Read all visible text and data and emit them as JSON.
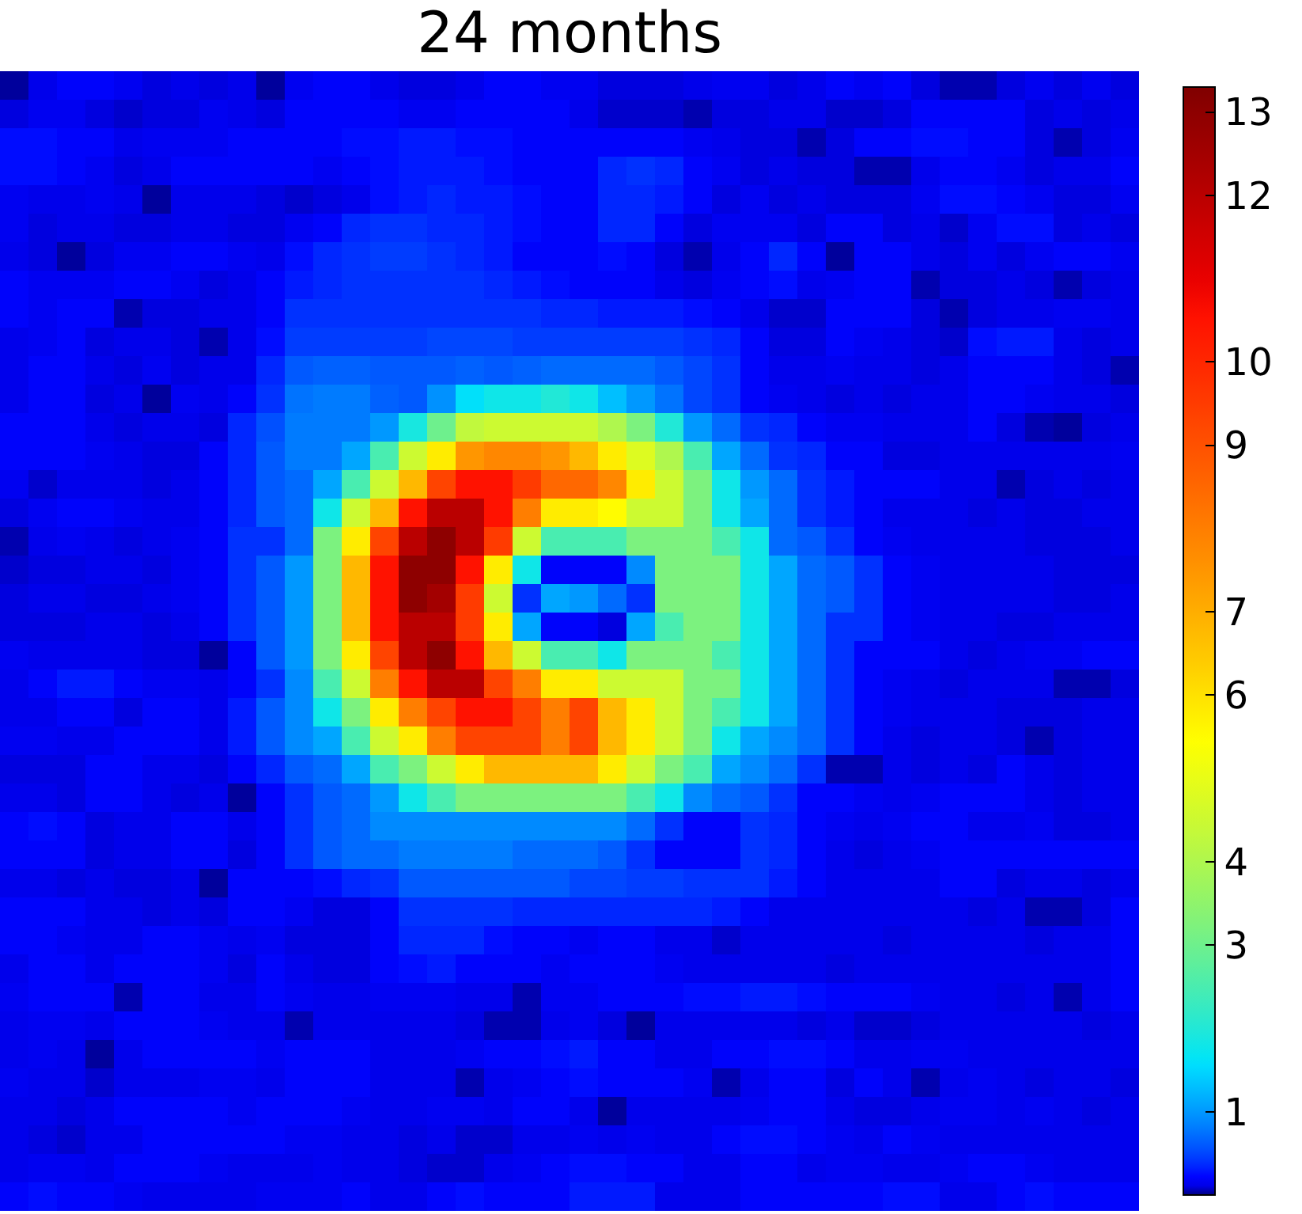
{
  "chart_data": {
    "type": "heatmap",
    "title": "24 months",
    "categories": [
      null,
      null,
      null,
      null,
      null,
      null,
      null,
      null,
      null,
      null,
      null,
      null,
      null,
      null,
      null,
      null,
      null,
      null,
      null,
      null,
      null,
      null,
      null,
      null,
      null,
      null,
      null,
      null,
      null,
      null,
      null,
      null,
      null,
      null,
      null,
      null,
      null,
      null,
      null,
      null
    ],
    "y_categories": [
      null,
      null,
      null,
      null,
      null,
      null,
      null,
      null,
      null,
      null,
      null,
      null,
      null,
      null,
      null,
      null,
      null,
      null,
      null,
      null,
      null,
      null,
      null,
      null,
      null,
      null,
      null,
      null,
      null,
      null,
      null,
      null,
      null,
      null,
      null,
      null,
      null,
      null,
      null,
      null
    ],
    "clim": [
      0,
      13.3
    ],
    "cticks": [
      1,
      3,
      4,
      6,
      7,
      9,
      10,
      12,
      13
    ],
    "cells": [
      [
        0.03,
        0.12,
        0.2,
        0.2,
        0.15,
        0.1,
        0.12,
        0.1,
        0.12,
        0.03,
        0.15,
        0.2,
        0.2,
        0.12,
        0.1,
        0.1,
        0.12,
        0.2,
        0.2,
        0.15,
        0.15,
        0.1,
        0.1,
        0.1,
        0.12,
        0.15,
        0.15,
        0.1,
        0.12,
        0.2,
        0.15,
        0.2,
        0.1,
        0.05,
        0.05,
        0.1,
        0.15,
        0.1,
        0.15,
        0.1
      ],
      [
        0.1,
        0.15,
        0.15,
        0.1,
        0.08,
        0.1,
        0.1,
        0.15,
        0.12,
        0.1,
        0.2,
        0.2,
        0.2,
        0.2,
        0.15,
        0.15,
        0.2,
        0.2,
        0.2,
        0.2,
        0.12,
        0.08,
        0.08,
        0.08,
        0.05,
        0.1,
        0.1,
        0.12,
        0.12,
        0.08,
        0.08,
        0.1,
        0.2,
        0.2,
        0.2,
        0.2,
        0.1,
        0.12,
        0.1,
        0.12
      ],
      [
        0.25,
        0.25,
        0.2,
        0.2,
        0.12,
        0.15,
        0.15,
        0.15,
        0.2,
        0.2,
        0.2,
        0.2,
        0.25,
        0.25,
        0.3,
        0.3,
        0.25,
        0.25,
        0.2,
        0.2,
        0.2,
        0.2,
        0.2,
        0.2,
        0.15,
        0.12,
        0.1,
        0.1,
        0.05,
        0.1,
        0.2,
        0.2,
        0.25,
        0.25,
        0.2,
        0.2,
        0.1,
        0.05,
        0.1,
        0.15
      ],
      [
        0.25,
        0.25,
        0.2,
        0.15,
        0.1,
        0.12,
        0.2,
        0.2,
        0.2,
        0.2,
        0.2,
        0.15,
        0.2,
        0.25,
        0.3,
        0.3,
        0.3,
        0.25,
        0.2,
        0.2,
        0.2,
        0.35,
        0.4,
        0.35,
        0.2,
        0.15,
        0.1,
        0.12,
        0.1,
        0.1,
        0.05,
        0.05,
        0.12,
        0.2,
        0.2,
        0.15,
        0.1,
        0.12,
        0.12,
        0.2
      ],
      [
        0.15,
        0.12,
        0.12,
        0.15,
        0.12,
        0.03,
        0.12,
        0.12,
        0.12,
        0.1,
        0.08,
        0.1,
        0.12,
        0.25,
        0.3,
        0.35,
        0.3,
        0.3,
        0.25,
        0.2,
        0.2,
        0.35,
        0.35,
        0.3,
        0.2,
        0.1,
        0.15,
        0.1,
        0.12,
        0.1,
        0.1,
        0.1,
        0.15,
        0.25,
        0.25,
        0.2,
        0.15,
        0.1,
        0.1,
        0.15
      ],
      [
        0.15,
        0.1,
        0.12,
        0.12,
        0.1,
        0.1,
        0.12,
        0.12,
        0.1,
        0.1,
        0.15,
        0.2,
        0.35,
        0.4,
        0.4,
        0.35,
        0.35,
        0.3,
        0.25,
        0.2,
        0.2,
        0.35,
        0.35,
        0.2,
        0.1,
        0.15,
        0.15,
        0.15,
        0.1,
        0.2,
        0.2,
        0.1,
        0.12,
        0.08,
        0.15,
        0.25,
        0.25,
        0.1,
        0.12,
        0.1
      ],
      [
        0.12,
        0.1,
        0.03,
        0.1,
        0.15,
        0.15,
        0.2,
        0.2,
        0.15,
        0.12,
        0.25,
        0.35,
        0.4,
        0.45,
        0.45,
        0.4,
        0.35,
        0.3,
        0.2,
        0.2,
        0.2,
        0.25,
        0.2,
        0.1,
        0.05,
        0.12,
        0.2,
        0.35,
        0.2,
        0.03,
        0.2,
        0.2,
        0.12,
        0.1,
        0.15,
        0.1,
        0.15,
        0.2,
        0.2,
        0.15
      ],
      [
        0.2,
        0.15,
        0.15,
        0.15,
        0.2,
        0.2,
        0.15,
        0.1,
        0.12,
        0.2,
        0.3,
        0.35,
        0.4,
        0.4,
        0.4,
        0.4,
        0.4,
        0.35,
        0.3,
        0.25,
        0.2,
        0.2,
        0.2,
        0.12,
        0.1,
        0.15,
        0.2,
        0.25,
        0.12,
        0.15,
        0.2,
        0.2,
        0.05,
        0.1,
        0.1,
        0.12,
        0.1,
        0.05,
        0.1,
        0.12
      ],
      [
        0.2,
        0.15,
        0.2,
        0.2,
        0.05,
        0.1,
        0.1,
        0.12,
        0.12,
        0.2,
        0.4,
        0.4,
        0.4,
        0.4,
        0.4,
        0.4,
        0.4,
        0.4,
        0.4,
        0.35,
        0.35,
        0.3,
        0.3,
        0.3,
        0.25,
        0.2,
        0.12,
        0.08,
        0.08,
        0.2,
        0.2,
        0.2,
        0.1,
        0.05,
        0.1,
        0.12,
        0.12,
        0.15,
        0.15,
        0.12
      ],
      [
        0.12,
        0.15,
        0.2,
        0.1,
        0.12,
        0.12,
        0.1,
        0.05,
        0.12,
        0.25,
        0.45,
        0.45,
        0.45,
        0.45,
        0.45,
        0.5,
        0.5,
        0.5,
        0.45,
        0.45,
        0.45,
        0.45,
        0.45,
        0.45,
        0.4,
        0.35,
        0.2,
        0.1,
        0.1,
        0.2,
        0.15,
        0.12,
        0.1,
        0.08,
        0.25,
        0.3,
        0.3,
        0.12,
        0.1,
        0.12
      ],
      [
        0.12,
        0.2,
        0.2,
        0.12,
        0.1,
        0.15,
        0.1,
        0.12,
        0.12,
        0.35,
        0.6,
        0.65,
        0.65,
        0.6,
        0.6,
        0.6,
        0.65,
        0.6,
        0.65,
        0.7,
        0.7,
        0.7,
        0.7,
        0.6,
        0.5,
        0.4,
        0.2,
        0.12,
        0.12,
        0.15,
        0.12,
        0.12,
        0.1,
        0.12,
        0.2,
        0.2,
        0.2,
        0.12,
        0.1,
        0.05
      ],
      [
        0.12,
        0.2,
        0.2,
        0.1,
        0.12,
        0.03,
        0.15,
        0.12,
        0.2,
        0.4,
        0.75,
        0.8,
        0.8,
        0.65,
        0.6,
        0.95,
        1.6,
        1.8,
        1.8,
        2.0,
        1.8,
        1.3,
        1.0,
        0.75,
        0.5,
        0.4,
        0.2,
        0.15,
        0.12,
        0.1,
        0.12,
        0.1,
        0.12,
        0.12,
        0.2,
        0.2,
        0.15,
        0.12,
        0.12,
        0.1
      ],
      [
        0.2,
        0.2,
        0.2,
        0.12,
        0.1,
        0.12,
        0.12,
        0.1,
        0.35,
        0.55,
        0.8,
        0.8,
        0.8,
        1.0,
        1.9,
        3.0,
        4.3,
        4.5,
        4.5,
        4.5,
        4.5,
        4.0,
        3.2,
        2.0,
        1.0,
        0.7,
        0.4,
        0.35,
        0.2,
        0.15,
        0.15,
        0.12,
        0.12,
        0.12,
        0.2,
        0.1,
        0.05,
        0.03,
        0.1,
        0.12
      ],
      [
        0.2,
        0.2,
        0.2,
        0.15,
        0.12,
        0.1,
        0.1,
        0.2,
        0.35,
        0.6,
        0.8,
        0.8,
        1.1,
        2.5,
        4.5,
        5.8,
        7.5,
        7.8,
        7.8,
        7.5,
        6.8,
        5.8,
        4.8,
        4.0,
        2.5,
        1.1,
        0.7,
        0.4,
        0.35,
        0.2,
        0.2,
        0.1,
        0.1,
        0.12,
        0.12,
        0.12,
        0.12,
        0.12,
        0.12,
        0.15
      ],
      [
        0.15,
        0.08,
        0.12,
        0.12,
        0.12,
        0.1,
        0.12,
        0.2,
        0.35,
        0.6,
        0.7,
        1.1,
        2.5,
        4.5,
        6.8,
        9.3,
        10.5,
        10.5,
        9.5,
        8.5,
        8.5,
        7.8,
        5.8,
        4.5,
        3.2,
        1.8,
        1.0,
        0.7,
        0.4,
        0.3,
        0.2,
        0.2,
        0.2,
        0.12,
        0.12,
        0.05,
        0.1,
        0.12,
        0.1,
        0.12
      ],
      [
        0.1,
        0.15,
        0.2,
        0.2,
        0.15,
        0.12,
        0.12,
        0.2,
        0.35,
        0.6,
        0.7,
        1.8,
        4.5,
        6.8,
        10.5,
        12,
        12,
        10.5,
        8,
        5.8,
        5.8,
        5.5,
        4.5,
        4.5,
        3.2,
        1.8,
        1.1,
        0.7,
        0.4,
        0.3,
        0.2,
        0.12,
        0.12,
        0.12,
        0.1,
        0.12,
        0.1,
        0.1,
        0.12,
        0.12
      ],
      [
        0.05,
        0.12,
        0.15,
        0.12,
        0.1,
        0.12,
        0.15,
        0.2,
        0.4,
        0.4,
        0.7,
        3.2,
        5.8,
        9.3,
        12,
        13,
        12,
        9.5,
        4.5,
        2.5,
        2.5,
        2.5,
        3.2,
        3.2,
        3.2,
        2.5,
        1.8,
        0.7,
        0.6,
        0.4,
        0.2,
        0.15,
        0.12,
        0.12,
        0.12,
        0.12,
        0.1,
        0.1,
        0.1,
        0.12
      ],
      [
        0.08,
        0.1,
        0.1,
        0.12,
        0.12,
        0.1,
        0.15,
        0.2,
        0.4,
        0.6,
        1.0,
        3.2,
        6.8,
        10.5,
        13,
        13,
        10.5,
        5.8,
        1.8,
        0.2,
        0.2,
        0.2,
        0.9,
        3.2,
        3.2,
        3.2,
        1.8,
        1.1,
        0.7,
        0.6,
        0.4,
        0.2,
        0.15,
        0.12,
        0.12,
        0.12,
        0.12,
        0.1,
        0.1,
        0.1
      ],
      [
        0.1,
        0.12,
        0.12,
        0.1,
        0.1,
        0.12,
        0.15,
        0.2,
        0.4,
        0.6,
        1.0,
        3.2,
        6.8,
        10.5,
        13,
        12.5,
        9.5,
        4.5,
        0.4,
        1.1,
        1.0,
        0.7,
        0.4,
        3.2,
        3.2,
        3.2,
        1.8,
        1.1,
        0.7,
        0.6,
        0.4,
        0.2,
        0.15,
        0.12,
        0.12,
        0.12,
        0.12,
        0.1,
        0.1,
        0.12
      ],
      [
        0.1,
        0.1,
        0.1,
        0.12,
        0.12,
        0.1,
        0.12,
        0.2,
        0.4,
        0.6,
        1.0,
        3.2,
        6.8,
        10.5,
        12,
        12,
        9.5,
        5.8,
        1.1,
        0.2,
        0.2,
        0.1,
        1.1,
        2.5,
        3.2,
        3.2,
        1.8,
        1.1,
        0.7,
        0.4,
        0.4,
        0.2,
        0.15,
        0.12,
        0.12,
        0.1,
        0.1,
        0.12,
        0.12,
        0.12
      ],
      [
        0.15,
        0.12,
        0.12,
        0.12,
        0.12,
        0.1,
        0.1,
        0.03,
        0.2,
        0.6,
        1.0,
        3.2,
        5.8,
        9.3,
        12,
        13,
        10.5,
        6.8,
        4.5,
        2.5,
        2.5,
        1.8,
        3.2,
        3.2,
        3.2,
        2.5,
        1.8,
        1.1,
        0.7,
        0.4,
        0.2,
        0.2,
        0.2,
        0.12,
        0.1,
        0.12,
        0.15,
        0.15,
        0.2,
        0.2
      ],
      [
        0.12,
        0.2,
        0.3,
        0.3,
        0.2,
        0.15,
        0.15,
        0.12,
        0.2,
        0.4,
        0.9,
        2.5,
        4.5,
        8,
        10.5,
        12,
        12,
        9.3,
        8,
        5.8,
        5.8,
        4.5,
        4.5,
        4.5,
        3.2,
        3.2,
        1.8,
        1.1,
        0.7,
        0.4,
        0.2,
        0.15,
        0.12,
        0.1,
        0.12,
        0.12,
        0.12,
        0.05,
        0.05,
        0.1
      ],
      [
        0.12,
        0.12,
        0.2,
        0.2,
        0.1,
        0.2,
        0.2,
        0.12,
        0.3,
        0.6,
        0.9,
        1.8,
        3.2,
        5.8,
        8,
        9.3,
        10.5,
        10.5,
        9.3,
        8,
        9.3,
        6.8,
        5.8,
        4.5,
        3.2,
        2.5,
        1.8,
        1.1,
        0.7,
        0.4,
        0.2,
        0.15,
        0.12,
        0.12,
        0.12,
        0.1,
        0.1,
        0.1,
        0.12,
        0.12
      ],
      [
        0.15,
        0.15,
        0.12,
        0.12,
        0.2,
        0.2,
        0.2,
        0.12,
        0.3,
        0.6,
        0.9,
        1.1,
        2.5,
        4.5,
        5.8,
        8,
        9.3,
        9.3,
        9.3,
        8,
        9.3,
        6.8,
        5.8,
        4.5,
        3.2,
        1.8,
        1.1,
        0.9,
        0.7,
        0.4,
        0.2,
        0.12,
        0.1,
        0.12,
        0.12,
        0.1,
        0.05,
        0.1,
        0.12,
        0.12
      ],
      [
        0.1,
        0.1,
        0.1,
        0.2,
        0.2,
        0.12,
        0.12,
        0.1,
        0.2,
        0.35,
        0.6,
        0.7,
        1.1,
        2.5,
        3.2,
        4.5,
        5.8,
        6.8,
        6.8,
        6.8,
        6.8,
        5.8,
        4.5,
        3.2,
        2.5,
        1.1,
        0.9,
        0.7,
        0.4,
        0.05,
        0.05,
        0.12,
        0.1,
        0.12,
        0.1,
        0.2,
        0.12,
        0.1,
        0.12,
        0.12
      ],
      [
        0.12,
        0.12,
        0.1,
        0.2,
        0.2,
        0.12,
        0.1,
        0.12,
        0.03,
        0.2,
        0.4,
        0.6,
        0.7,
        1.0,
        1.8,
        2.5,
        3.2,
        3.2,
        3.2,
        3.2,
        3.2,
        3.2,
        2.5,
        1.8,
        0.9,
        0.7,
        0.6,
        0.4,
        0.2,
        0.2,
        0.15,
        0.12,
        0.15,
        0.2,
        0.2,
        0.2,
        0.12,
        0.1,
        0.12,
        0.12
      ],
      [
        0.2,
        0.25,
        0.2,
        0.1,
        0.12,
        0.12,
        0.2,
        0.2,
        0.12,
        0.2,
        0.4,
        0.6,
        0.7,
        0.9,
        0.9,
        0.9,
        0.9,
        0.9,
        0.9,
        0.9,
        0.9,
        0.9,
        0.7,
        0.4,
        0.2,
        0.2,
        0.4,
        0.35,
        0.2,
        0.15,
        0.12,
        0.15,
        0.2,
        0.2,
        0.12,
        0.12,
        0.15,
        0.1,
        0.1,
        0.12
      ],
      [
        0.2,
        0.2,
        0.2,
        0.1,
        0.12,
        0.12,
        0.2,
        0.2,
        0.1,
        0.2,
        0.4,
        0.6,
        0.7,
        0.7,
        0.8,
        0.8,
        0.8,
        0.8,
        0.7,
        0.7,
        0.7,
        0.6,
        0.4,
        0.2,
        0.2,
        0.2,
        0.4,
        0.35,
        0.2,
        0.12,
        0.1,
        0.12,
        0.15,
        0.2,
        0.2,
        0.2,
        0.2,
        0.2,
        0.2,
        0.2
      ],
      [
        0.12,
        0.12,
        0.1,
        0.12,
        0.1,
        0.1,
        0.12,
        0.03,
        0.2,
        0.2,
        0.2,
        0.25,
        0.35,
        0.4,
        0.6,
        0.6,
        0.6,
        0.6,
        0.6,
        0.6,
        0.5,
        0.5,
        0.45,
        0.45,
        0.4,
        0.4,
        0.4,
        0.3,
        0.2,
        0.12,
        0.12,
        0.12,
        0.12,
        0.2,
        0.2,
        0.1,
        0.12,
        0.12,
        0.1,
        0.12
      ],
      [
        0.2,
        0.2,
        0.2,
        0.12,
        0.12,
        0.1,
        0.12,
        0.1,
        0.2,
        0.2,
        0.15,
        0.1,
        0.1,
        0.2,
        0.4,
        0.4,
        0.4,
        0.4,
        0.35,
        0.35,
        0.35,
        0.35,
        0.35,
        0.35,
        0.35,
        0.3,
        0.2,
        0.12,
        0.12,
        0.12,
        0.12,
        0.12,
        0.12,
        0.12,
        0.1,
        0.12,
        0.05,
        0.05,
        0.1,
        0.2
      ],
      [
        0.2,
        0.2,
        0.15,
        0.12,
        0.12,
        0.2,
        0.2,
        0.15,
        0.12,
        0.15,
        0.1,
        0.1,
        0.1,
        0.2,
        0.35,
        0.35,
        0.35,
        0.25,
        0.2,
        0.2,
        0.15,
        0.2,
        0.2,
        0.12,
        0.12,
        0.08,
        0.12,
        0.12,
        0.12,
        0.12,
        0.12,
        0.1,
        0.12,
        0.12,
        0.12,
        0.12,
        0.1,
        0.12,
        0.12,
        0.2
      ],
      [
        0.12,
        0.2,
        0.2,
        0.12,
        0.2,
        0.2,
        0.2,
        0.15,
        0.1,
        0.2,
        0.12,
        0.1,
        0.1,
        0.2,
        0.25,
        0.3,
        0.2,
        0.2,
        0.2,
        0.15,
        0.2,
        0.2,
        0.2,
        0.15,
        0.12,
        0.12,
        0.12,
        0.12,
        0.12,
        0.1,
        0.12,
        0.12,
        0.12,
        0.12,
        0.12,
        0.12,
        0.12,
        0.12,
        0.12,
        0.2
      ],
      [
        0.15,
        0.2,
        0.2,
        0.2,
        0.05,
        0.2,
        0.2,
        0.12,
        0.12,
        0.2,
        0.15,
        0.12,
        0.12,
        0.15,
        0.15,
        0.15,
        0.12,
        0.12,
        0.05,
        0.15,
        0.15,
        0.2,
        0.2,
        0.2,
        0.25,
        0.25,
        0.3,
        0.3,
        0.25,
        0.2,
        0.2,
        0.2,
        0.15,
        0.12,
        0.12,
        0.1,
        0.12,
        0.05,
        0.12,
        0.2
      ],
      [
        0.12,
        0.15,
        0.15,
        0.12,
        0.2,
        0.2,
        0.2,
        0.15,
        0.12,
        0.12,
        0.05,
        0.12,
        0.12,
        0.12,
        0.12,
        0.12,
        0.1,
        0.05,
        0.05,
        0.12,
        0.15,
        0.1,
        0.03,
        0.12,
        0.12,
        0.12,
        0.12,
        0.12,
        0.1,
        0.12,
        0.08,
        0.08,
        0.1,
        0.12,
        0.12,
        0.12,
        0.12,
        0.12,
        0.1,
        0.12
      ],
      [
        0.12,
        0.15,
        0.12,
        0.03,
        0.12,
        0.2,
        0.2,
        0.2,
        0.2,
        0.15,
        0.2,
        0.2,
        0.2,
        0.12,
        0.12,
        0.12,
        0.15,
        0.2,
        0.2,
        0.25,
        0.3,
        0.2,
        0.2,
        0.12,
        0.12,
        0.2,
        0.2,
        0.25,
        0.25,
        0.2,
        0.12,
        0.12,
        0.15,
        0.15,
        0.12,
        0.12,
        0.12,
        0.12,
        0.12,
        0.12
      ],
      [
        0.15,
        0.12,
        0.12,
        0.08,
        0.12,
        0.12,
        0.12,
        0.15,
        0.15,
        0.12,
        0.2,
        0.2,
        0.2,
        0.12,
        0.12,
        0.12,
        0.05,
        0.12,
        0.15,
        0.2,
        0.25,
        0.2,
        0.2,
        0.2,
        0.15,
        0.05,
        0.12,
        0.2,
        0.2,
        0.1,
        0.2,
        0.12,
        0.05,
        0.12,
        0.15,
        0.12,
        0.1,
        0.12,
        0.12,
        0.1
      ],
      [
        0.12,
        0.12,
        0.1,
        0.12,
        0.2,
        0.2,
        0.2,
        0.2,
        0.15,
        0.2,
        0.2,
        0.2,
        0.15,
        0.12,
        0.12,
        0.15,
        0.15,
        0.12,
        0.2,
        0.2,
        0.12,
        0.03,
        0.12,
        0.12,
        0.12,
        0.12,
        0.15,
        0.2,
        0.2,
        0.12,
        0.1,
        0.1,
        0.12,
        0.15,
        0.15,
        0.12,
        0.15,
        0.12,
        0.1,
        0.12
      ],
      [
        0.12,
        0.1,
        0.08,
        0.12,
        0.12,
        0.2,
        0.2,
        0.2,
        0.2,
        0.2,
        0.15,
        0.15,
        0.12,
        0.12,
        0.1,
        0.12,
        0.08,
        0.08,
        0.12,
        0.12,
        0.15,
        0.12,
        0.15,
        0.12,
        0.12,
        0.2,
        0.25,
        0.25,
        0.2,
        0.15,
        0.12,
        0.2,
        0.15,
        0.12,
        0.12,
        0.12,
        0.12,
        0.12,
        0.12,
        0.12
      ],
      [
        0.12,
        0.15,
        0.15,
        0.12,
        0.2,
        0.2,
        0.2,
        0.15,
        0.12,
        0.12,
        0.12,
        0.15,
        0.12,
        0.12,
        0.1,
        0.08,
        0.08,
        0.12,
        0.15,
        0.2,
        0.25,
        0.25,
        0.2,
        0.2,
        0.12,
        0.12,
        0.2,
        0.2,
        0.12,
        0.15,
        0.15,
        0.12,
        0.12,
        0.15,
        0.2,
        0.2,
        0.15,
        0.12,
        0.12,
        0.12
      ],
      [
        0.2,
        0.25,
        0.2,
        0.2,
        0.15,
        0.12,
        0.12,
        0.12,
        0.12,
        0.15,
        0.15,
        0.15,
        0.2,
        0.12,
        0.12,
        0.2,
        0.25,
        0.2,
        0.2,
        0.2,
        0.3,
        0.3,
        0.3,
        0.12,
        0.12,
        0.12,
        0.2,
        0.2,
        0.2,
        0.2,
        0.2,
        0.25,
        0.25,
        0.12,
        0.12,
        0.2,
        0.25,
        0.2,
        0.2,
        0.2
      ]
    ]
  }
}
